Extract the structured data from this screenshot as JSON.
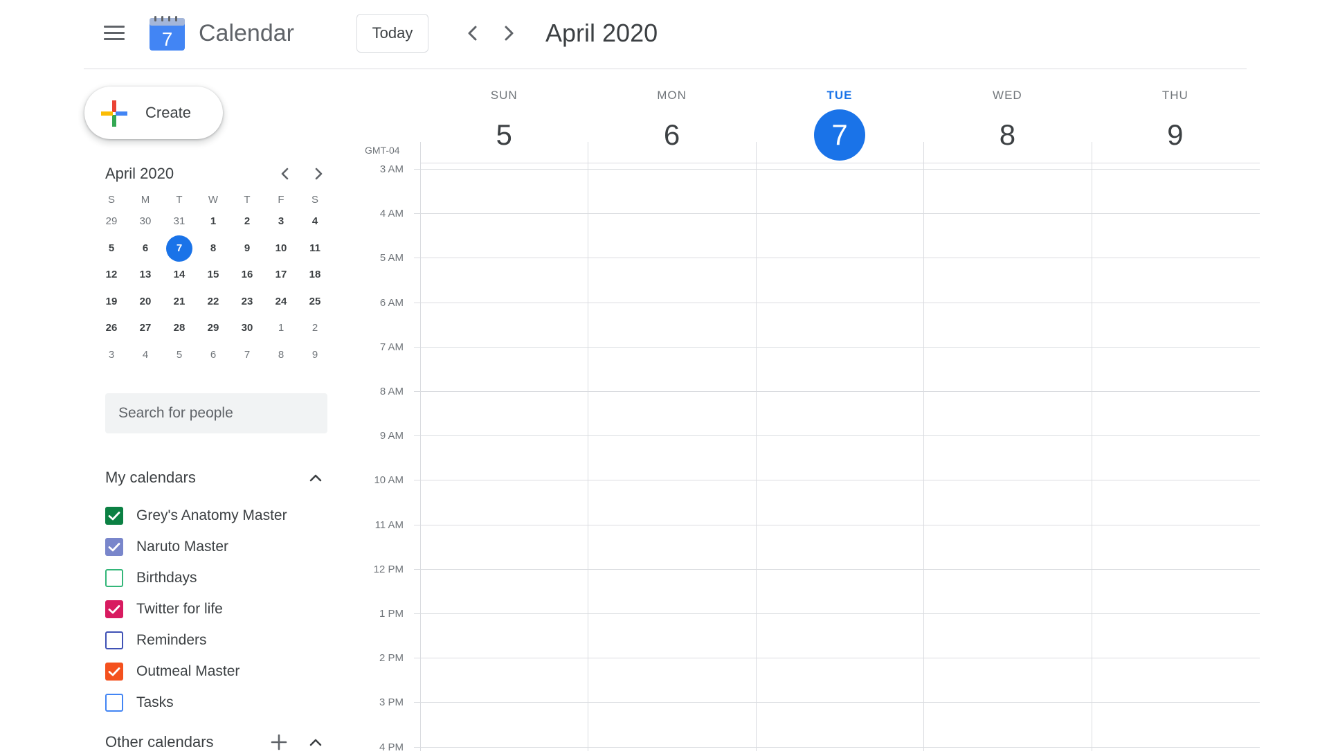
{
  "header": {
    "menu_icon": "hamburger-menu-icon",
    "logo_day": "7",
    "app_title": "Calendar",
    "today_label": "Today",
    "prev_icon": "chevron-left-icon",
    "next_icon": "chevron-right-icon",
    "current_range": "April 2020"
  },
  "sidebar": {
    "create_label": "Create",
    "mini_calendar": {
      "title": "April 2020",
      "weekday_labels": [
        "S",
        "M",
        "T",
        "W",
        "T",
        "F",
        "S"
      ],
      "weeks": [
        [
          "29",
          "30",
          "31",
          "1",
          "2",
          "3",
          "4"
        ],
        [
          "5",
          "6",
          "7",
          "8",
          "9",
          "10",
          "11"
        ],
        [
          "12",
          "13",
          "14",
          "15",
          "16",
          "17",
          "18"
        ],
        [
          "19",
          "20",
          "21",
          "22",
          "23",
          "24",
          "25"
        ],
        [
          "26",
          "27",
          "28",
          "29",
          "30",
          "1",
          "2"
        ],
        [
          "3",
          "4",
          "5",
          "6",
          "7",
          "8",
          "9"
        ]
      ],
      "selected_day": "7"
    },
    "search_placeholder": "Search for people",
    "my_calendars_title": "My calendars",
    "my_calendars": [
      {
        "label": "Grey's Anatomy Master",
        "checked": true,
        "color": "#0b8043"
      },
      {
        "label": "Naruto Master",
        "checked": true,
        "color": "#7986cb"
      },
      {
        "label": "Birthdays",
        "checked": false,
        "color": "#33b679"
      },
      {
        "label": "Twitter for life",
        "checked": true,
        "color": "#d81b60"
      },
      {
        "label": "Reminders",
        "checked": false,
        "color": "#3f51b5"
      },
      {
        "label": "Outmeal Master",
        "checked": true,
        "color": "#f4511e"
      },
      {
        "label": "Tasks",
        "checked": false,
        "color": "#4285f4"
      }
    ],
    "other_calendars_title": "Other calendars"
  },
  "week": {
    "timezone": "GMT-04",
    "days": [
      {
        "dow": "SUN",
        "num": "5",
        "today": false
      },
      {
        "dow": "MON",
        "num": "6",
        "today": false
      },
      {
        "dow": "TUE",
        "num": "7",
        "today": true
      },
      {
        "dow": "WED",
        "num": "8",
        "today": false
      },
      {
        "dow": "THU",
        "num": "9",
        "today": false
      }
    ],
    "hours": [
      "3 AM",
      "4 AM",
      "5 AM",
      "6 AM",
      "7 AM",
      "8 AM",
      "9 AM",
      "10 AM",
      "11 AM",
      "12 PM",
      "1 PM",
      "2 PM",
      "3 PM",
      "4 PM"
    ]
  },
  "colors": {
    "accent": "#1a73e8",
    "gridline": "#dadce0",
    "muted_text": "#70757a"
  }
}
